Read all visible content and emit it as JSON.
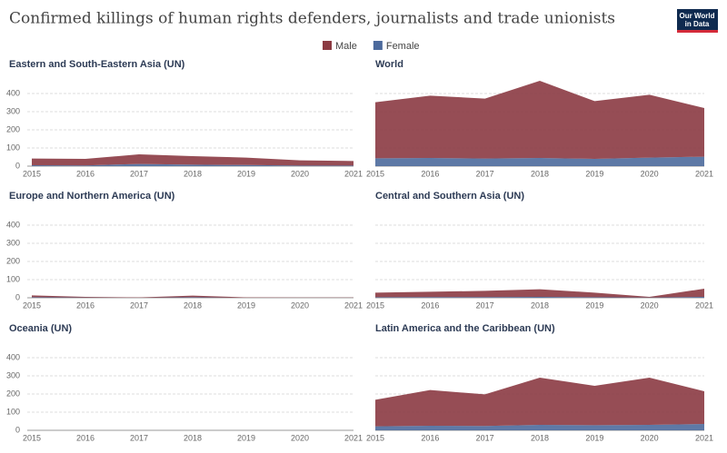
{
  "title": "Confirmed killings of human rights defenders, journalists and trade unionists",
  "logo": [
    "Our World",
    "in Data"
  ],
  "chart_data": [
    {
      "type": "area",
      "title": "Eastern and South-Eastern Asia (UN)",
      "stacked": true,
      "categories": [
        "2015",
        "2016",
        "2017",
        "2018",
        "2019",
        "2020",
        "2021"
      ],
      "series": [
        {
          "name": "Female",
          "color": "#4c6a9c",
          "values": [
            5,
            4,
            12,
            8,
            6,
            3,
            3
          ]
        },
        {
          "name": "Male",
          "color": "#8b3a42",
          "values": [
            37,
            36,
            53,
            47,
            41,
            29,
            25
          ]
        }
      ],
      "ylim": [
        0,
        480
      ],
      "yticks": [
        0,
        100,
        200,
        300,
        400
      ],
      "grid": true
    },
    {
      "type": "area",
      "title": "World",
      "stacked": true,
      "categories": [
        "2015",
        "2016",
        "2017",
        "2018",
        "2019",
        "2020",
        "2021"
      ],
      "series": [
        {
          "name": "Female",
          "color": "#4c6a9c",
          "values": [
            43,
            45,
            42,
            45,
            40,
            47,
            52
          ]
        },
        {
          "name": "Male",
          "color": "#8b3a42",
          "values": [
            309,
            343,
            330,
            425,
            318,
            346,
            268
          ]
        }
      ],
      "ylim": [
        0,
        480
      ],
      "yticks": [
        0,
        100,
        200,
        300,
        400
      ],
      "grid": true
    },
    {
      "type": "area",
      "title": "Europe and Northern America (UN)",
      "stacked": true,
      "categories": [
        "2015",
        "2016",
        "2017",
        "2018",
        "2019",
        "2020",
        "2021"
      ],
      "series": [
        {
          "name": "Female",
          "color": "#4c6a9c",
          "values": [
            3,
            1,
            0,
            3,
            0,
            0,
            0
          ]
        },
        {
          "name": "Male",
          "color": "#8b3a42",
          "values": [
            10,
            4,
            2,
            9,
            2,
            1,
            1
          ]
        }
      ],
      "ylim": [
        0,
        480
      ],
      "yticks": [
        0,
        100,
        200,
        300,
        400
      ],
      "grid": true
    },
    {
      "type": "area",
      "title": "Central and Southern Asia (UN)",
      "stacked": true,
      "categories": [
        "2015",
        "2016",
        "2017",
        "2018",
        "2019",
        "2020",
        "2021"
      ],
      "series": [
        {
          "name": "Female",
          "color": "#4c6a9c",
          "values": [
            3,
            4,
            4,
            5,
            3,
            1,
            5
          ]
        },
        {
          "name": "Male",
          "color": "#8b3a42",
          "values": [
            25,
            29,
            34,
            42,
            25,
            4,
            45
          ]
        }
      ],
      "ylim": [
        0,
        480
      ],
      "yticks": [
        0,
        100,
        200,
        300,
        400
      ],
      "grid": true
    },
    {
      "type": "area",
      "title": "Oceania (UN)",
      "stacked": true,
      "categories": [
        "2015",
        "2016",
        "2017",
        "2018",
        "2019",
        "2020",
        "2021"
      ],
      "series": [
        {
          "name": "Female",
          "color": "#4c6a9c",
          "values": [
            0,
            0,
            0,
            0,
            0,
            0,
            0
          ]
        },
        {
          "name": "Male",
          "color": "#8b3a42",
          "values": [
            0,
            0,
            0,
            0,
            0,
            0,
            0
          ]
        }
      ],
      "ylim": [
        0,
        480
      ],
      "yticks": [
        0,
        100,
        200,
        300,
        400
      ],
      "grid": true
    },
    {
      "type": "area",
      "title": "Latin America and the Caribbean (UN)",
      "stacked": true,
      "categories": [
        "2015",
        "2016",
        "2017",
        "2018",
        "2019",
        "2020",
        "2021"
      ],
      "series": [
        {
          "name": "Female",
          "color": "#4c6a9c",
          "values": [
            22,
            25,
            24,
            30,
            28,
            30,
            35
          ]
        },
        {
          "name": "Male",
          "color": "#8b3a42",
          "values": [
            146,
            197,
            174,
            260,
            217,
            260,
            180
          ]
        }
      ],
      "ylim": [
        0,
        480
      ],
      "yticks": [
        0,
        100,
        200,
        300,
        400
      ],
      "grid": true
    }
  ]
}
